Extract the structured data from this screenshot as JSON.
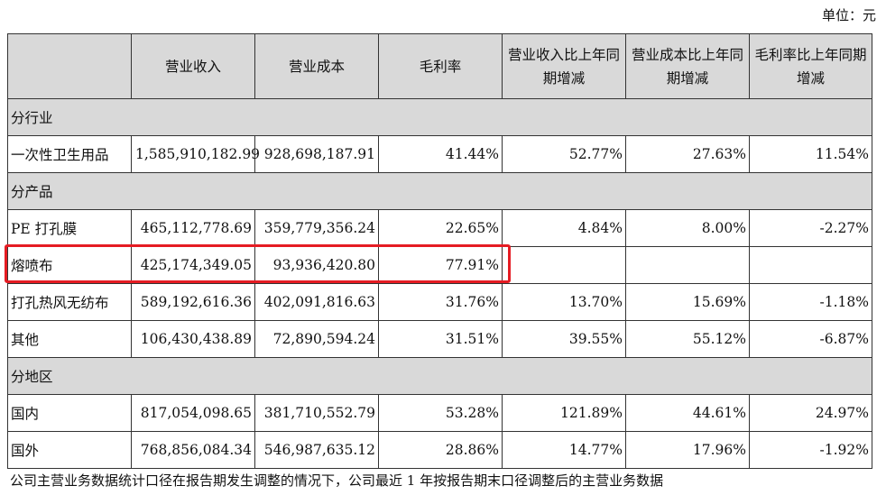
{
  "unit": "单位：元",
  "headers": [
    "",
    "营业收入",
    "营业成本",
    "毛利率",
    "营业收入比上年同期增减",
    "营业成本比上年同期增减",
    "毛利率比上年同期增减"
  ],
  "sections": [
    {
      "title": "分行业",
      "rows": [
        {
          "label": "一次性卫生用品",
          "revenue": "1,585,910,182.99",
          "cost": "928,698,187.91",
          "margin": "41.44%",
          "rev_change": "52.77%",
          "cost_change": "27.63%",
          "margin_change": "11.54%"
        }
      ]
    },
    {
      "title": "分产品",
      "rows": [
        {
          "label": "PE 打孔膜",
          "revenue": "465,112,778.69",
          "cost": "359,779,356.24",
          "margin": "22.65%",
          "rev_change": "4.84%",
          "cost_change": "8.00%",
          "margin_change": "-2.27%"
        },
        {
          "label": "熔喷布",
          "revenue": "425,174,349.05",
          "cost": "93,936,420.80",
          "margin": "77.91%",
          "rev_change": "",
          "cost_change": "",
          "margin_change": ""
        },
        {
          "label": "打孔热风无纺布",
          "revenue": "589,192,616.36",
          "cost": "402,091,816.63",
          "margin": "31.76%",
          "rev_change": "13.70%",
          "cost_change": "15.69%",
          "margin_change": "-1.18%"
        },
        {
          "label": "其他",
          "revenue": "106,430,438.89",
          "cost": "72,890,594.24",
          "margin": "31.51%",
          "rev_change": "39.55%",
          "cost_change": "55.12%",
          "margin_change": "-6.87%"
        }
      ]
    },
    {
      "title": "分地区",
      "rows": [
        {
          "label": "国内",
          "revenue": "817,054,098.65",
          "cost": "381,710,552.79",
          "margin": "53.28%",
          "rev_change": "121.89%",
          "cost_change": "44.61%",
          "margin_change": "24.97%"
        },
        {
          "label": "国外",
          "revenue": "768,856,084.34",
          "cost": "546,987,635.12",
          "margin": "28.86%",
          "rev_change": "14.77%",
          "cost_change": "17.96%",
          "margin_change": "-1.92%"
        }
      ]
    }
  ],
  "highlight_color": "#e51c23",
  "footnote": "公司主营业务数据统计口径在报告期发生调整的情况下，公司最近 1 年按报告期末口径调整后的主营业务数据"
}
